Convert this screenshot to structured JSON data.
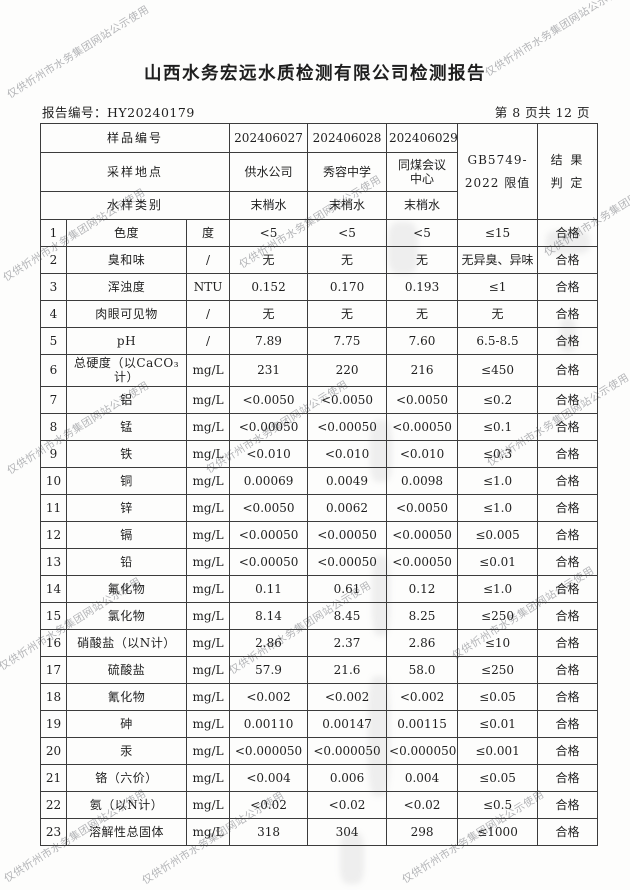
{
  "page": {
    "title": "山西水务宏远水质检测有限公司检测报告",
    "report_no": "报告编号：HY20240179",
    "page_indicator": "第 8 页共 12 页"
  },
  "watermark": {
    "text": "仅供忻州市水务集团网站公示使用"
  },
  "table": {
    "header": {
      "sample_no_label": "样品编号",
      "location_label": "采样地点",
      "type_label": "水样类别",
      "samples": [
        {
          "no": "202406027",
          "location": "供水公司",
          "type": "末梢水"
        },
        {
          "no": "202406028",
          "location": "秀容中学",
          "type": "末梢水"
        },
        {
          "no": "202406029",
          "location": "同煤会议中心",
          "type": "末梢水"
        }
      ],
      "limit_label_line1": "GB5749-",
      "limit_label_line2": "2022 限值",
      "result_label_line1": "结 果",
      "result_label_line2": "判 定"
    },
    "rows": [
      {
        "no": "1",
        "param": "色度",
        "unit": "度",
        "v1": "<5",
        "v2": "<5",
        "v3": "<5",
        "limit": "≤15",
        "result": "合格"
      },
      {
        "no": "2",
        "param": "臭和味",
        "unit": "/",
        "v1": "无",
        "v2": "无",
        "v3": "无",
        "limit": "无异臭、异味",
        "result": "合格"
      },
      {
        "no": "3",
        "param": "浑浊度",
        "unit": "NTU",
        "v1": "0.152",
        "v2": "0.170",
        "v3": "0.193",
        "limit": "≤1",
        "result": "合格"
      },
      {
        "no": "4",
        "param": "肉眼可见物",
        "unit": "/",
        "v1": "无",
        "v2": "无",
        "v3": "无",
        "limit": "无",
        "result": "合格"
      },
      {
        "no": "5",
        "param": "pH",
        "unit": "/",
        "v1": "7.89",
        "v2": "7.75",
        "v3": "7.60",
        "limit": "6.5-8.5",
        "result": "合格"
      },
      {
        "no": "6",
        "param": "总硬度（以CaCO₃计）",
        "unit": "mg/L",
        "v1": "231",
        "v2": "220",
        "v3": "216",
        "limit": "≤450",
        "result": "合格"
      },
      {
        "no": "7",
        "param": "铝",
        "unit": "mg/L",
        "v1": "<0.0050",
        "v2": "<0.0050",
        "v3": "<0.0050",
        "limit": "≤0.2",
        "result": "合格"
      },
      {
        "no": "8",
        "param": "锰",
        "unit": "mg/L",
        "v1": "<0.00050",
        "v2": "<0.00050",
        "v3": "<0.00050",
        "limit": "≤0.1",
        "result": "合格"
      },
      {
        "no": "9",
        "param": "铁",
        "unit": "mg/L",
        "v1": "<0.010",
        "v2": "<0.010",
        "v3": "<0.010",
        "limit": "≤0.3",
        "result": "合格"
      },
      {
        "no": "10",
        "param": "铜",
        "unit": "mg/L",
        "v1": "0.00069",
        "v2": "0.0049",
        "v3": "0.0098",
        "limit": "≤1.0",
        "result": "合格"
      },
      {
        "no": "11",
        "param": "锌",
        "unit": "mg/L",
        "v1": "<0.0050",
        "v2": "0.0062",
        "v3": "<0.0050",
        "limit": "≤1.0",
        "result": "合格"
      },
      {
        "no": "12",
        "param": "镉",
        "unit": "mg/L",
        "v1": "<0.00050",
        "v2": "<0.00050",
        "v3": "<0.00050",
        "limit": "≤0.005",
        "result": "合格"
      },
      {
        "no": "13",
        "param": "铅",
        "unit": "mg/L",
        "v1": "<0.00050",
        "v2": "<0.00050",
        "v3": "<0.00050",
        "limit": "≤0.01",
        "result": "合格"
      },
      {
        "no": "14",
        "param": "氟化物",
        "unit": "mg/L",
        "v1": "0.11",
        "v2": "0.61",
        "v3": "0.12",
        "limit": "≤1.0",
        "result": "合格"
      },
      {
        "no": "15",
        "param": "氯化物",
        "unit": "mg/L",
        "v1": "8.14",
        "v2": "8.45",
        "v3": "8.25",
        "limit": "≤250",
        "result": "合格"
      },
      {
        "no": "16",
        "param": "硝酸盐（以N计）",
        "unit": "mg/L",
        "v1": "2.86",
        "v2": "2.37",
        "v3": "2.86",
        "limit": "≤10",
        "result": "合格"
      },
      {
        "no": "17",
        "param": "硫酸盐",
        "unit": "mg/L",
        "v1": "57.9",
        "v2": "21.6",
        "v3": "58.0",
        "limit": "≤250",
        "result": "合格"
      },
      {
        "no": "18",
        "param": "氰化物",
        "unit": "mg/L",
        "v1": "<0.002",
        "v2": "<0.002",
        "v3": "<0.002",
        "limit": "≤0.05",
        "result": "合格"
      },
      {
        "no": "19",
        "param": "砷",
        "unit": "mg/L",
        "v1": "0.00110",
        "v2": "0.00147",
        "v3": "0.00115",
        "limit": "≤0.01",
        "result": "合格"
      },
      {
        "no": "20",
        "param": "汞",
        "unit": "mg/L",
        "v1": "<0.000050",
        "v2": "<0.000050",
        "v3": "<0.000050",
        "limit": "≤0.001",
        "result": "合格"
      },
      {
        "no": "21",
        "param": "铬（六价）",
        "unit": "mg/L",
        "v1": "<0.004",
        "v2": "0.006",
        "v3": "0.004",
        "limit": "≤0.05",
        "result": "合格"
      },
      {
        "no": "22",
        "param": "氨（以N计）",
        "unit": "mg/L",
        "v1": "<0.02",
        "v2": "<0.02",
        "v3": "<0.02",
        "limit": "≤0.5",
        "result": "合格"
      },
      {
        "no": "23",
        "param": "溶解性总固体",
        "unit": "mg/L",
        "v1": "318",
        "v2": "304",
        "v3": "298",
        "limit": "≤1000",
        "result": "合格"
      }
    ]
  }
}
